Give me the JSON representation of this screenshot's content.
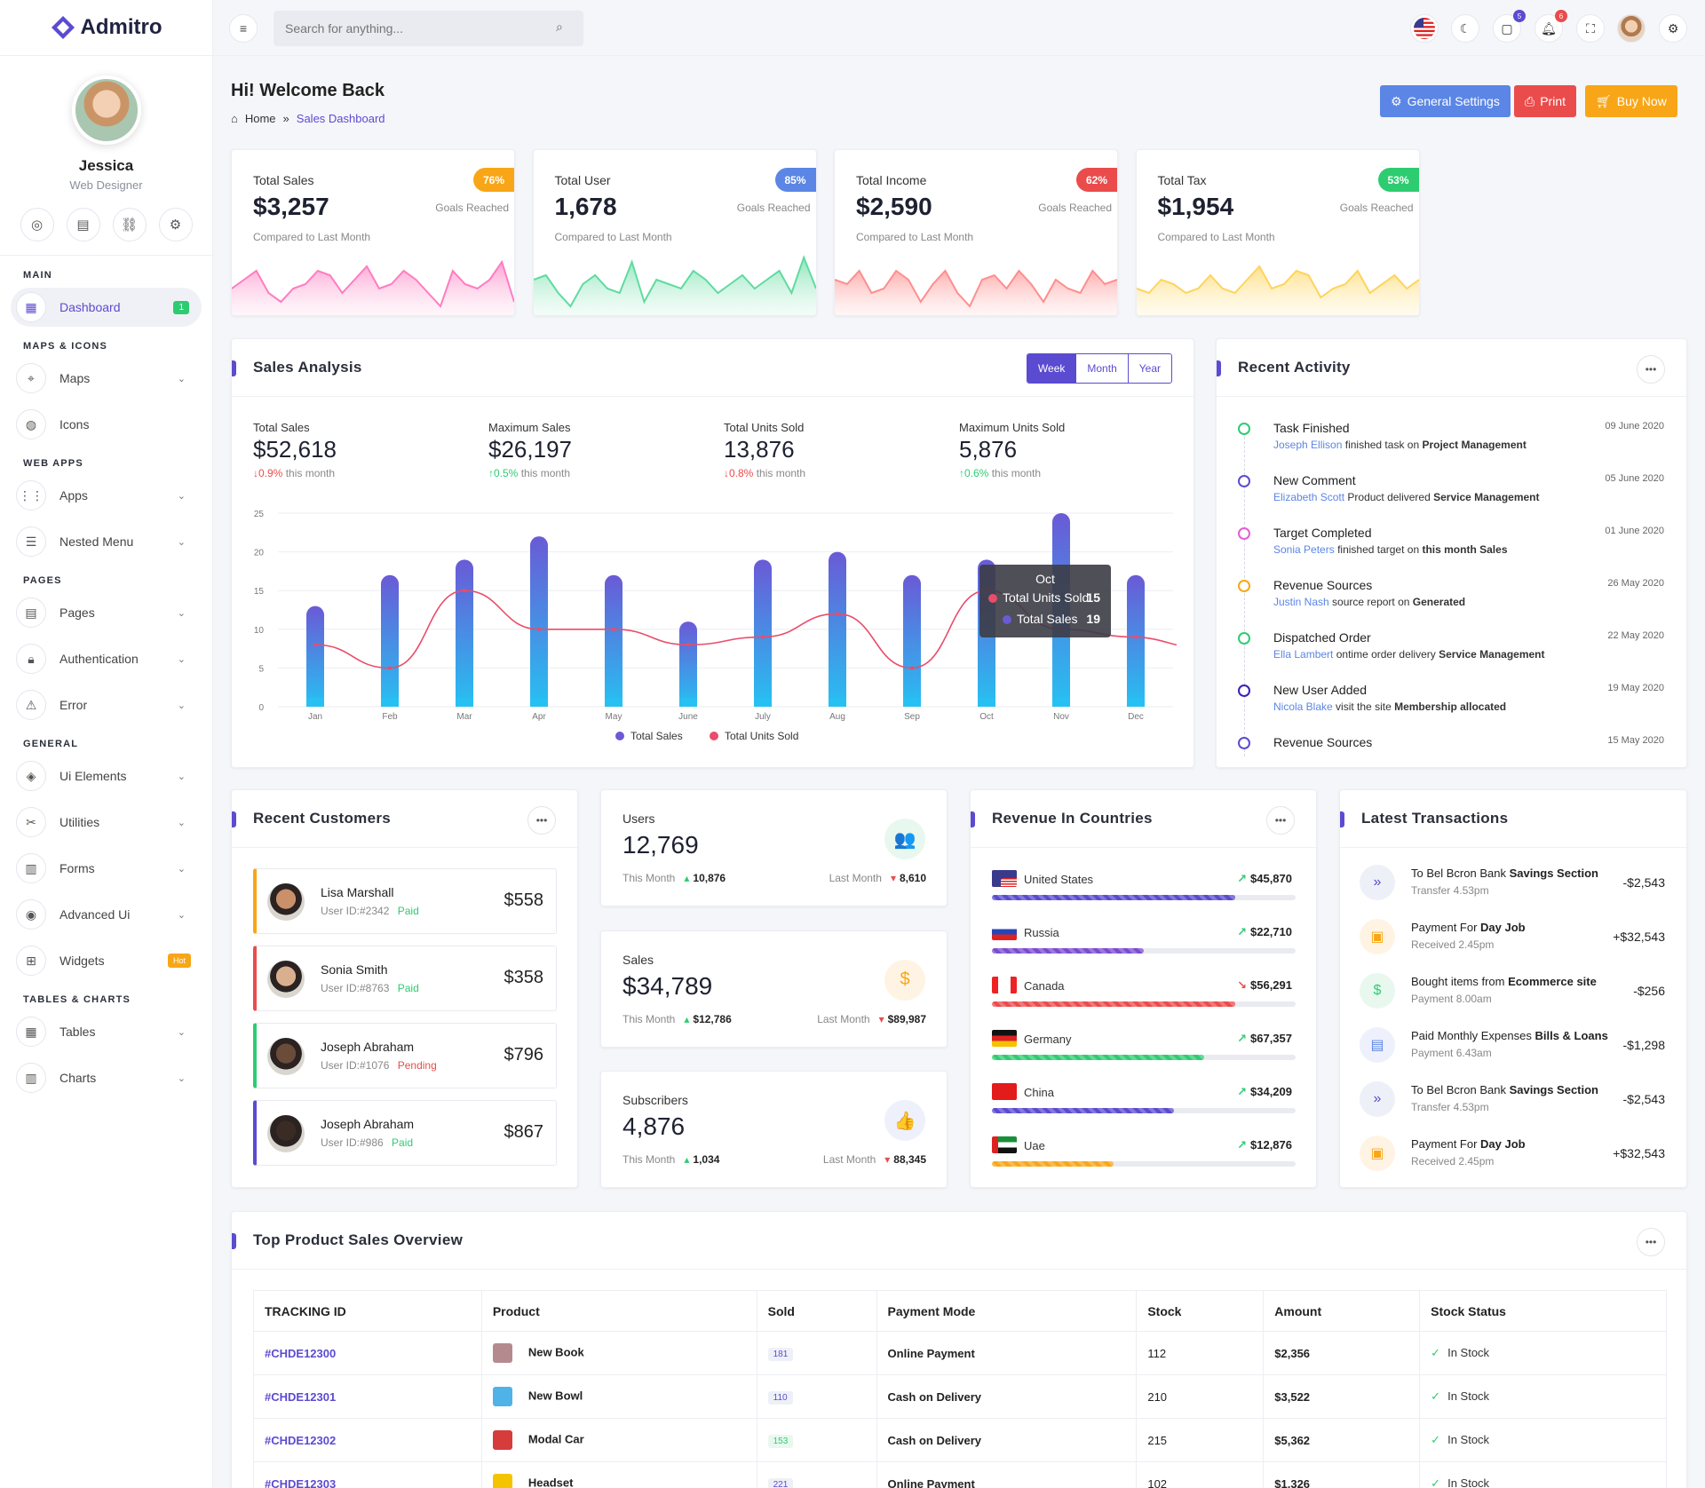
{
  "app": {
    "name": "Admitro"
  },
  "user": {
    "name": "Jessica",
    "role": "Web Designer"
  },
  "nav": {
    "main": "MAIN",
    "dashboard": "Dashboard",
    "dashboard_badge": "1",
    "maps_icons": "MAPS & ICONS",
    "maps": "Maps",
    "icons": "Icons",
    "web_apps": "WEB APPS",
    "apps": "Apps",
    "nested": "Nested Menu",
    "pages_sec": "PAGES",
    "pages": "Pages",
    "auth": "Authentication",
    "error": "Error",
    "general": "GENERAL",
    "ui": "Ui Elements",
    "utilities": "Utilities",
    "forms": "Forms",
    "advanced": "Advanced Ui",
    "widgets": "Widgets",
    "hot": "Hot",
    "tables_charts": "TABLES & CHARTS",
    "tables": "Tables",
    "charts": "Charts"
  },
  "topbar": {
    "search_placeholder": "Search for anything...",
    "cart_count": "5",
    "notif_count": "6"
  },
  "header": {
    "welcome": "Hi! Welcome Back",
    "home": "Home",
    "sep": "»",
    "current": "Sales Dashboard",
    "btn_settings": "General Settings",
    "btn_print": "Print",
    "btn_buy": "Buy Now"
  },
  "stats": [
    {
      "label": "Total Sales",
      "value": "$3,257",
      "compare": "Compared to Last Month",
      "pct": "76%",
      "goal": "Goals Reached",
      "color": "#f8a617"
    },
    {
      "label": "Total User",
      "value": "1,678",
      "compare": "Compared to Last Month",
      "pct": "85%",
      "goal": "Goals Reached",
      "color": "#5b86e5"
    },
    {
      "label": "Total Income",
      "value": "$2,590",
      "compare": "Compared to Last Month",
      "pct": "62%",
      "goal": "Goals Reached",
      "color": "#ea4c4c"
    },
    {
      "label": "Total Tax",
      "value": "$1,954",
      "compare": "Compared to Last Month",
      "pct": "53%",
      "goal": "Goals Reached",
      "color": "#2ecc71"
    }
  ],
  "sales_analysis": {
    "title": "Sales Analysis",
    "tabs": [
      "Week",
      "Month",
      "Year"
    ],
    "metrics": [
      {
        "label": "Total Sales",
        "value": "$52,618",
        "change": "0.9%",
        "dir": "down",
        "suffix": "this month"
      },
      {
        "label": "Maximum Sales",
        "value": "$26,197",
        "change": "0.5%",
        "dir": "up",
        "suffix": "this month"
      },
      {
        "label": "Total Units Sold",
        "value": "13,876",
        "change": "0.8%",
        "dir": "down",
        "suffix": "this month"
      },
      {
        "label": "Maximum Units Sold",
        "value": "5,876",
        "change": "0.6%",
        "dir": "up",
        "suffix": "this month"
      }
    ],
    "tooltip": {
      "month": "Oct",
      "units_label": "Total Units Sold",
      "units_value": "15",
      "sales_label": "Total Sales",
      "sales_value": "19"
    }
  },
  "chart_data": {
    "type": "bar",
    "categories": [
      "Jan",
      "Feb",
      "Mar",
      "Apr",
      "May",
      "June",
      "July",
      "Aug",
      "Sep",
      "Oct",
      "Nov",
      "Dec"
    ],
    "series": [
      {
        "name": "Total Sales",
        "type": "bar",
        "values": [
          13,
          17,
          19,
          22,
          17,
          11,
          19,
          20,
          17,
          19,
          25,
          17
        ]
      },
      {
        "name": "Total Units Sold",
        "type": "line",
        "values": [
          8,
          5,
          15,
          10,
          10,
          8,
          9,
          12,
          5,
          15,
          10,
          9
        ]
      }
    ],
    "ylim": [
      0,
      25
    ],
    "yticks": [
      0,
      5,
      10,
      15,
      20,
      25
    ],
    "legend": "bottom",
    "grid": true,
    "colors": {
      "bar_top": "#6a5ad6",
      "bar_bottom": "#27c0f2",
      "line": "#ea4c6a"
    }
  },
  "activity": {
    "title": "Recent Activity",
    "items": [
      {
        "title": "Task Finished",
        "user": "Joseph Ellison",
        "text": "finished task on",
        "bold": "Project Management",
        "date": "09 June 2020",
        "color": "#2ecc71"
      },
      {
        "title": "New Comment",
        "user": "Elizabeth Scott",
        "text": "Product delivered",
        "bold": "Service Management",
        "date": "05 June 2020",
        "color": "#5b4bd1"
      },
      {
        "title": "Target Completed",
        "user": "Sonia Peters",
        "text": "finished target on",
        "bold": "this month Sales",
        "date": "01 June 2020",
        "color": "#e65cd6"
      },
      {
        "title": "Revenue Sources",
        "user": "Justin Nash",
        "text": "source report on",
        "bold": "Generated",
        "date": "26 May 2020",
        "color": "#f8a617"
      },
      {
        "title": "Dispatched Order",
        "user": "Ella Lambert",
        "text": "ontime order delivery",
        "bold": "Service Management",
        "date": "22 May 2020",
        "color": "#2ecc71"
      },
      {
        "title": "New User Added",
        "user": "Nicola Blake",
        "text": "visit the site",
        "bold": "Membership allocated",
        "date": "19 May 2020",
        "color": "#3a1fb8"
      },
      {
        "title": "Revenue Sources",
        "user": "",
        "text": "",
        "bold": "",
        "date": "15 May 2020",
        "color": "#5b4bd1"
      }
    ]
  },
  "customers": {
    "title": "Recent Customers",
    "items": [
      {
        "name": "Lisa Marshall",
        "id": "User ID:#2342",
        "status": "Paid",
        "amount": "$558",
        "color": "#f8a617",
        "skin": "#c9906a"
      },
      {
        "name": "Sonia Smith",
        "id": "User ID:#8763",
        "status": "Paid",
        "amount": "$358",
        "color": "#ea4c4c",
        "skin": "#d9b08f"
      },
      {
        "name": "Joseph Abraham",
        "id": "User ID:#1076",
        "status": "Pending",
        "amount": "$796",
        "color": "#2ecc71",
        "skin": "#6b4b3a"
      },
      {
        "name": "Joseph Abraham",
        "id": "User ID:#986",
        "status": "Paid",
        "amount": "$867",
        "color": "#5b4bd1",
        "skin": "#3b2b25"
      }
    ]
  },
  "minis": [
    {
      "label": "Users",
      "value": "12,769",
      "this": "This Month",
      "this_val": "10,876",
      "last": "Last Month",
      "last_val": "8,610",
      "icon": "users-icon",
      "glyph": "👥",
      "bg": "#e8f8ef",
      "fg": "#2ecc71"
    },
    {
      "label": "Sales",
      "value": "$34,789",
      "this": "This Month",
      "this_val": "$12,786",
      "last": "Last Month",
      "last_val": "$89,987",
      "icon": "dollar-hand-icon",
      "glyph": "$",
      "bg": "#fff4e3",
      "fg": "#f8a617"
    },
    {
      "label": "Subscribers",
      "value": "4,876",
      "this": "This Month",
      "this_val": "1,034",
      "last": "Last Month",
      "last_val": "88,345",
      "icon": "thumbs-up-icon",
      "glyph": "👍",
      "bg": "#eef1fb",
      "fg": "#5b86e5"
    }
  ],
  "countries": {
    "title": "Revenue In Countries",
    "items": [
      {
        "name": "United States",
        "amount": "$45,870",
        "trend": "up",
        "pct": 0.8,
        "color": "#5b4bd1"
      },
      {
        "name": "Russia",
        "amount": "$22,710",
        "trend": "up",
        "pct": 0.5,
        "color": "#7b4bd1"
      },
      {
        "name": "Canada",
        "amount": "$56,291",
        "trend": "down",
        "pct": 0.8,
        "color": "#ea4c4c"
      },
      {
        "name": "Germany",
        "amount": "$67,357",
        "trend": "up",
        "pct": 0.7,
        "color": "#2ecc71"
      },
      {
        "name": "China",
        "amount": "$34,209",
        "trend": "up",
        "pct": 0.6,
        "color": "#5b4bd1"
      },
      {
        "name": "Uae",
        "amount": "$12,876",
        "trend": "up",
        "pct": 0.4,
        "color": "#f8a617"
      }
    ]
  },
  "transactions": {
    "title": "Latest Transactions",
    "items": [
      {
        "title": "To Bel Bcron Bank",
        "bold": "Savings Section",
        "sub": "Transfer 4.53pm",
        "amount": "-$2,543",
        "glyph": "»",
        "bg": "#eef0f8",
        "fg": "#5b4bd1",
        "icon": "chevrons-right-icon"
      },
      {
        "title": "Payment For",
        "bold": "Day Job",
        "sub": "Received 2.45pm",
        "amount": "+$32,543",
        "glyph": "▣",
        "bg": "#fff4e3",
        "fg": "#f8a617",
        "icon": "briefcase-icon"
      },
      {
        "title": "Bought items from",
        "bold": "Ecommerce site",
        "sub": "Payment 8.00am",
        "amount": "-$256",
        "glyph": "$",
        "bg": "#e8f8ef",
        "fg": "#2ecc71",
        "icon": "dollar-icon"
      },
      {
        "title": "Paid Monthly Expenses",
        "bold": "Bills & Loans",
        "sub": "Payment 6.43am",
        "amount": "-$1,298",
        "glyph": "▤",
        "bg": "#eef1fb",
        "fg": "#5b86e5",
        "icon": "file-icon"
      },
      {
        "title": "To Bel Bcron Bank",
        "bold": "Savings Section",
        "sub": "Transfer 4.53pm",
        "amount": "-$2,543",
        "glyph": "»",
        "bg": "#eef0f8",
        "fg": "#5b4bd1",
        "icon": "chevrons-right-icon"
      },
      {
        "title": "Payment For",
        "bold": "Day Job",
        "sub": "Received 2.45pm",
        "amount": "+$32,543",
        "glyph": "▣",
        "bg": "#fff4e3",
        "fg": "#f8a617",
        "icon": "briefcase-icon"
      }
    ]
  },
  "products": {
    "title": "Top Product Sales Overview",
    "headers": [
      "TRACKING ID",
      "Product",
      "Sold",
      "Payment Mode",
      "Stock",
      "Amount",
      "Stock Status"
    ],
    "rows": [
      {
        "id": "#CHDE12300",
        "product": "New Book",
        "sold": "181",
        "mode": "Online Payment",
        "stock": "112",
        "amount": "$2,356",
        "status": "In Stock",
        "img": "#b58a8f"
      },
      {
        "id": "#CHDE12301",
        "product": "New Bowl",
        "sold": "110",
        "mode": "Cash on Delivery",
        "stock": "210",
        "amount": "$3,522",
        "status": "In Stock",
        "img": "#4fb3e8"
      },
      {
        "id": "#CHDE12302",
        "product": "Modal Car",
        "sold": "153",
        "mode": "Cash on Delivery",
        "stock": "215",
        "amount": "$5,362",
        "status": "In Stock",
        "img": "#d63c3c"
      },
      {
        "id": "#CHDE12303",
        "product": "Headset",
        "sold": "221",
        "mode": "Online Payment",
        "stock": "102",
        "amount": "$1,326",
        "status": "In Stock",
        "img": "#f5c400"
      }
    ]
  }
}
